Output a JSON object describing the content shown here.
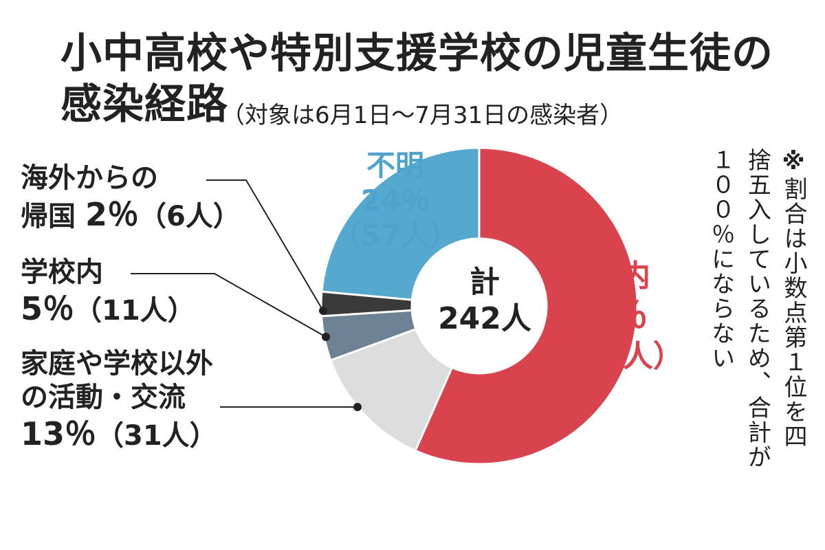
{
  "title": {
    "line1": "小中高校や特別支援学校の児童生徒の",
    "line2": "感染経路",
    "subtitle": "（対象は6月1日〜7月31日の感染者）"
  },
  "note": {
    "mark": "※",
    "text": "割合は小数点第１位を四捨五入しているため、合計が１００％にならない"
  },
  "center": {
    "label": "計",
    "total": "242人"
  },
  "labels": {
    "home": {
      "name": "家庭内",
      "pct": "57％",
      "count": "（137人）"
    },
    "unknown": {
      "name": "不明",
      "pct": "24％",
      "count": "（57人）"
    },
    "abroad": {
      "name_line1": "海外からの",
      "name_line2": "帰国",
      "pct": "2％",
      "count": "（6人）"
    },
    "school": {
      "name": "学校内",
      "pct": "5％",
      "count": "（11人）"
    },
    "other": {
      "name_line1": "家庭や学校以外",
      "name_line2": "の活動・交流",
      "pct": "13％",
      "count": "（31人）"
    }
  },
  "chart_data": {
    "type": "pie",
    "donut": true,
    "start": "12 o'clock",
    "direction": "clockwise",
    "title": "小中高校や特別支援学校の児童生徒の感染経路",
    "subtitle": "（対象は6月1日〜7月31日の感染者）",
    "total": 242,
    "slices": [
      {
        "name": "家庭内",
        "value": 137,
        "percent": 57,
        "color": "#d8434e"
      },
      {
        "name": "家庭や学校以外の活動・交流",
        "value": 31,
        "percent": 13,
        "color": "#dcdcdc"
      },
      {
        "name": "学校内",
        "value": 11,
        "percent": 5,
        "color": "#6c8293"
      },
      {
        "name": "海外からの帰国",
        "value": 6,
        "percent": 2,
        "color": "#3a3a3a"
      },
      {
        "name": "不明",
        "value": 57,
        "percent": 24,
        "color": "#55a9cf"
      }
    ]
  },
  "colors": {
    "home_text": "#d8434e",
    "unknown_text": "#4ea3cc",
    "text": "#222222",
    "leader_line": "#222222"
  }
}
